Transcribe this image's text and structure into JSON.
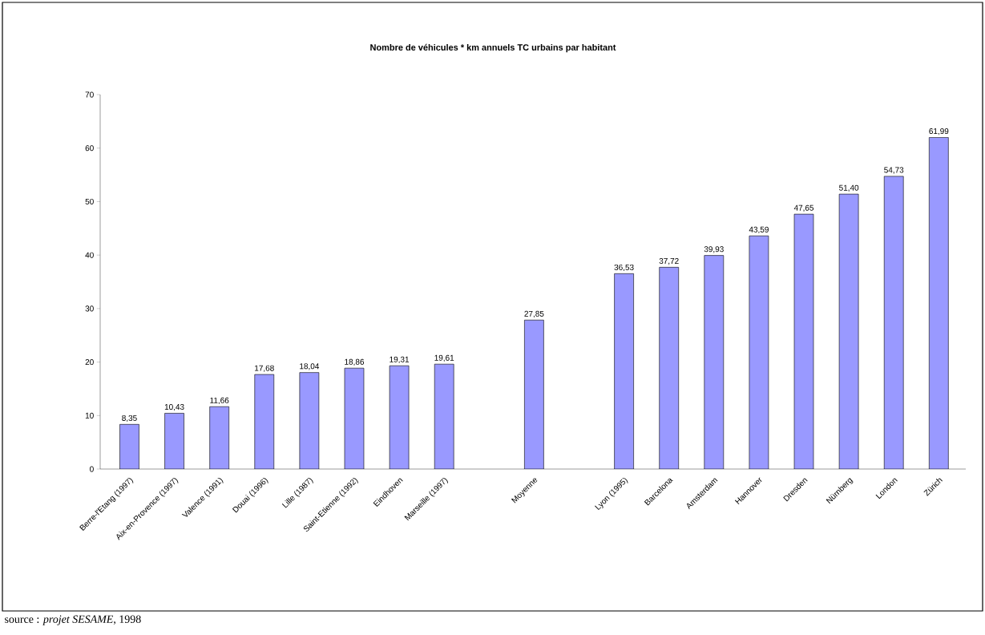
{
  "chart_data": {
    "type": "bar",
    "title": "Nombre de véhicules * km annuels TC urbains par habitant",
    "categories": [
      "Berre-l'Etang (1997)",
      "Aix-en-Provence (1997)",
      "Valence (1991)",
      "Douai (1996)",
      "Lille (1987)",
      "Saint-Etienne (1992)",
      "Eindhoven",
      "Marseille (1997)",
      null,
      "Moyenne",
      null,
      "Lyon (1995)",
      "Barcelona",
      "Amsterdam",
      "Hannover",
      "Dresden",
      "Nürnberg",
      "London",
      "Zürich"
    ],
    "values": [
      8.35,
      10.43,
      11.66,
      17.68,
      18.04,
      18.86,
      19.31,
      19.61,
      null,
      27.85,
      null,
      36.53,
      37.72,
      39.93,
      43.59,
      47.65,
      51.4,
      54.73,
      61.99
    ],
    "value_labels": [
      "8,35",
      "10,43",
      "11,66",
      "17,68",
      "18,04",
      "18,86",
      "19,31",
      "19,61",
      null,
      "27,85",
      null,
      "36,53",
      "37,72",
      "39,93",
      "43,59",
      "47,65",
      "51,40",
      "54,73",
      "61,99"
    ],
    "color": "#9999ff",
    "ylim": [
      0,
      70
    ],
    "yticks": [
      0,
      10,
      20,
      30,
      40,
      50,
      60,
      70
    ],
    "grid": false,
    "annotations": [
      "source : *projet SESAME*, 1998"
    ]
  }
}
